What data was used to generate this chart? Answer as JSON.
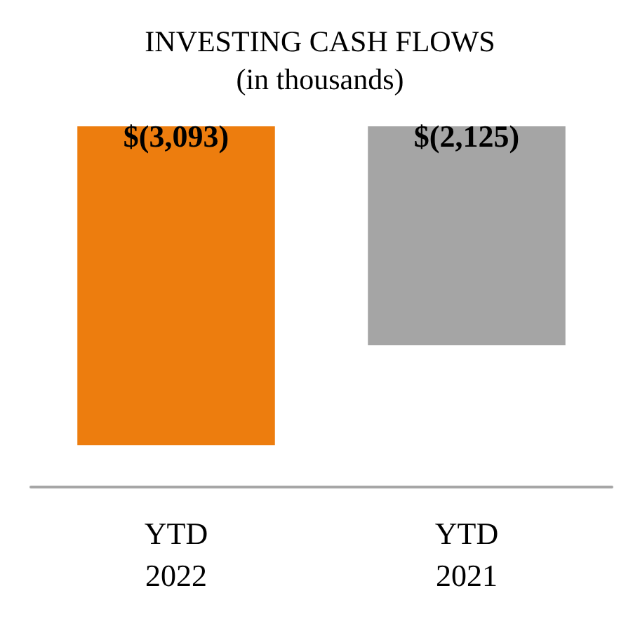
{
  "chart_data": {
    "type": "bar",
    "title": "INVESTING CASH FLOWS",
    "subtitle": "(in thousands)",
    "categories": [
      "YTD\n2022",
      "YTD\n2021"
    ],
    "values": [
      -3093,
      -2125
    ],
    "colors": [
      "#ed7d0e",
      "#a5a5a5"
    ],
    "value_labels": [
      "$(3,093)",
      "$(2,125)"
    ],
    "tick_labels": "x",
    "grid": false
  }
}
